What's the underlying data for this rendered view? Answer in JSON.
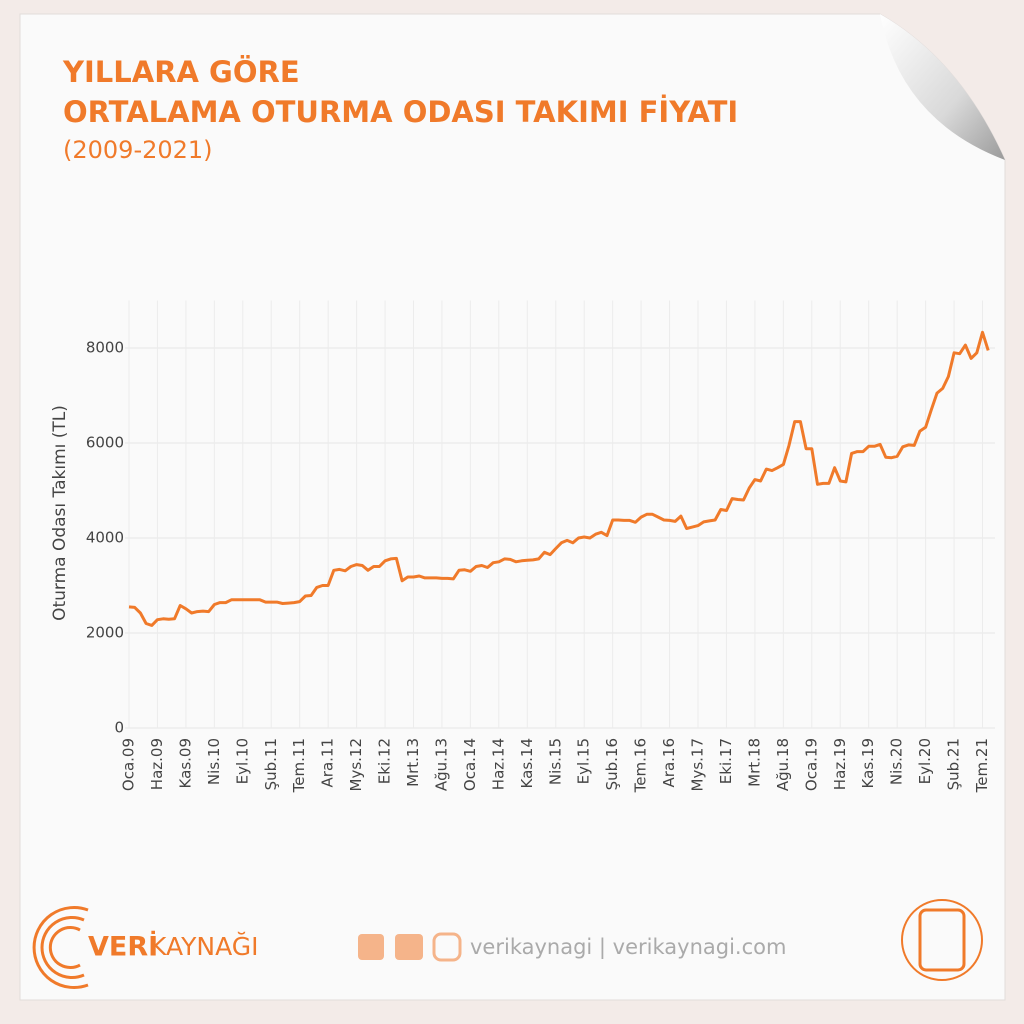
{
  "header": {
    "title_line1": "YILLARA GÖRE",
    "title_line2": "ORTALAMA OTURMA ODASI TAKIMI FİYATI",
    "subtitle": "(2009-2021)"
  },
  "chart_data": {
    "type": "line",
    "y_label": "Oturma Odası Takımı (TL)",
    "categories": [
      "Oca.09",
      null,
      null,
      null,
      null,
      "Haz.09",
      null,
      null,
      null,
      null,
      "Kas.09",
      null,
      null,
      null,
      null,
      "Nis.10",
      null,
      null,
      null,
      null,
      "Eyl.10",
      null,
      null,
      null,
      null,
      "Şub.11",
      null,
      null,
      null,
      null,
      "Tem.11",
      null,
      null,
      null,
      null,
      "Ara.11",
      null,
      null,
      null,
      null,
      "Mys.12",
      null,
      null,
      null,
      null,
      "Eki.12",
      null,
      null,
      null,
      null,
      "Mrt.13",
      null,
      null,
      null,
      null,
      "Ağu.13",
      null,
      null,
      null,
      null,
      "Oca.14",
      null,
      null,
      null,
      null,
      "Haz.14",
      null,
      null,
      null,
      null,
      "Kas.14",
      null,
      null,
      null,
      null,
      "Nis.15",
      null,
      null,
      null,
      null,
      "Eyl.15",
      null,
      null,
      null,
      null,
      "Şub.16",
      null,
      null,
      null,
      null,
      "Tem.16",
      null,
      null,
      null,
      null,
      "Ara.16",
      null,
      null,
      null,
      null,
      "Mys.17",
      null,
      null,
      null,
      null,
      "Eki.17",
      null,
      null,
      null,
      null,
      "Mrt.18",
      null,
      null,
      null,
      null,
      "Ağu.18",
      null,
      null,
      null,
      null,
      "Oca.19",
      null,
      null,
      null,
      null,
      "Haz.19",
      null,
      null,
      null,
      null,
      "Kas.19",
      null,
      null,
      null,
      null,
      "Nis.20",
      null,
      null,
      null,
      null,
      "Eyl.20",
      null,
      null,
      null,
      null,
      "Şub.21",
      null,
      null,
      null,
      null,
      "Tem.21",
      null
    ],
    "series": [
      {
        "name": "Oturma Odası Takımı",
        "color": "#f07a2a",
        "values": [
          2550,
          2540,
          2420,
          2200,
          2160,
          2280,
          2300,
          2290,
          2300,
          2580,
          2510,
          2420,
          2450,
          2460,
          2450,
          2600,
          2640,
          2640,
          2700,
          2700,
          2700,
          2700,
          2700,
          2700,
          2650,
          2650,
          2650,
          2620,
          2630,
          2640,
          2660,
          2780,
          2790,
          2960,
          3000,
          3000,
          3320,
          3340,
          3310,
          3400,
          3440,
          3420,
          3320,
          3400,
          3400,
          3520,
          3560,
          3570,
          3100,
          3180,
          3180,
          3200,
          3160,
          3160,
          3160,
          3150,
          3150,
          3140,
          3320,
          3330,
          3300,
          3400,
          3420,
          3380,
          3480,
          3500,
          3560,
          3550,
          3500,
          3520,
          3530,
          3540,
          3560,
          3700,
          3650,
          3780,
          3900,
          3950,
          3900,
          4000,
          4020,
          4000,
          4080,
          4120,
          4050,
          4380,
          4380,
          4370,
          4370,
          4330,
          4440,
          4500,
          4500,
          4440,
          4380,
          4370,
          4350,
          4460,
          4200,
          4230,
          4260,
          4340,
          4360,
          4380,
          4600,
          4580,
          4830,
          4810,
          4800,
          5050,
          5230,
          5200,
          5450,
          5420,
          5480,
          5550,
          5950,
          6450,
          6450,
          5880,
          5880,
          5130,
          5150,
          5150,
          5480,
          5200,
          5180,
          5780,
          5820,
          5820,
          5930,
          5930,
          5970,
          5700,
          5690,
          5720,
          5920,
          5960,
          5950,
          6250,
          6330,
          6700,
          7050,
          7150,
          7400,
          7900,
          7880,
          8060,
          7780,
          7900,
          8330,
          7950
        ]
      }
    ],
    "ylim": [
      0,
      9000
    ],
    "yticks": [
      0,
      2000,
      4000,
      6000,
      8000
    ],
    "grid": true
  },
  "footer": {
    "brand_bold": "VERİ",
    "brand_light": "KAYNAĞI",
    "social": "verikaynagi | verikaynagi.com"
  }
}
